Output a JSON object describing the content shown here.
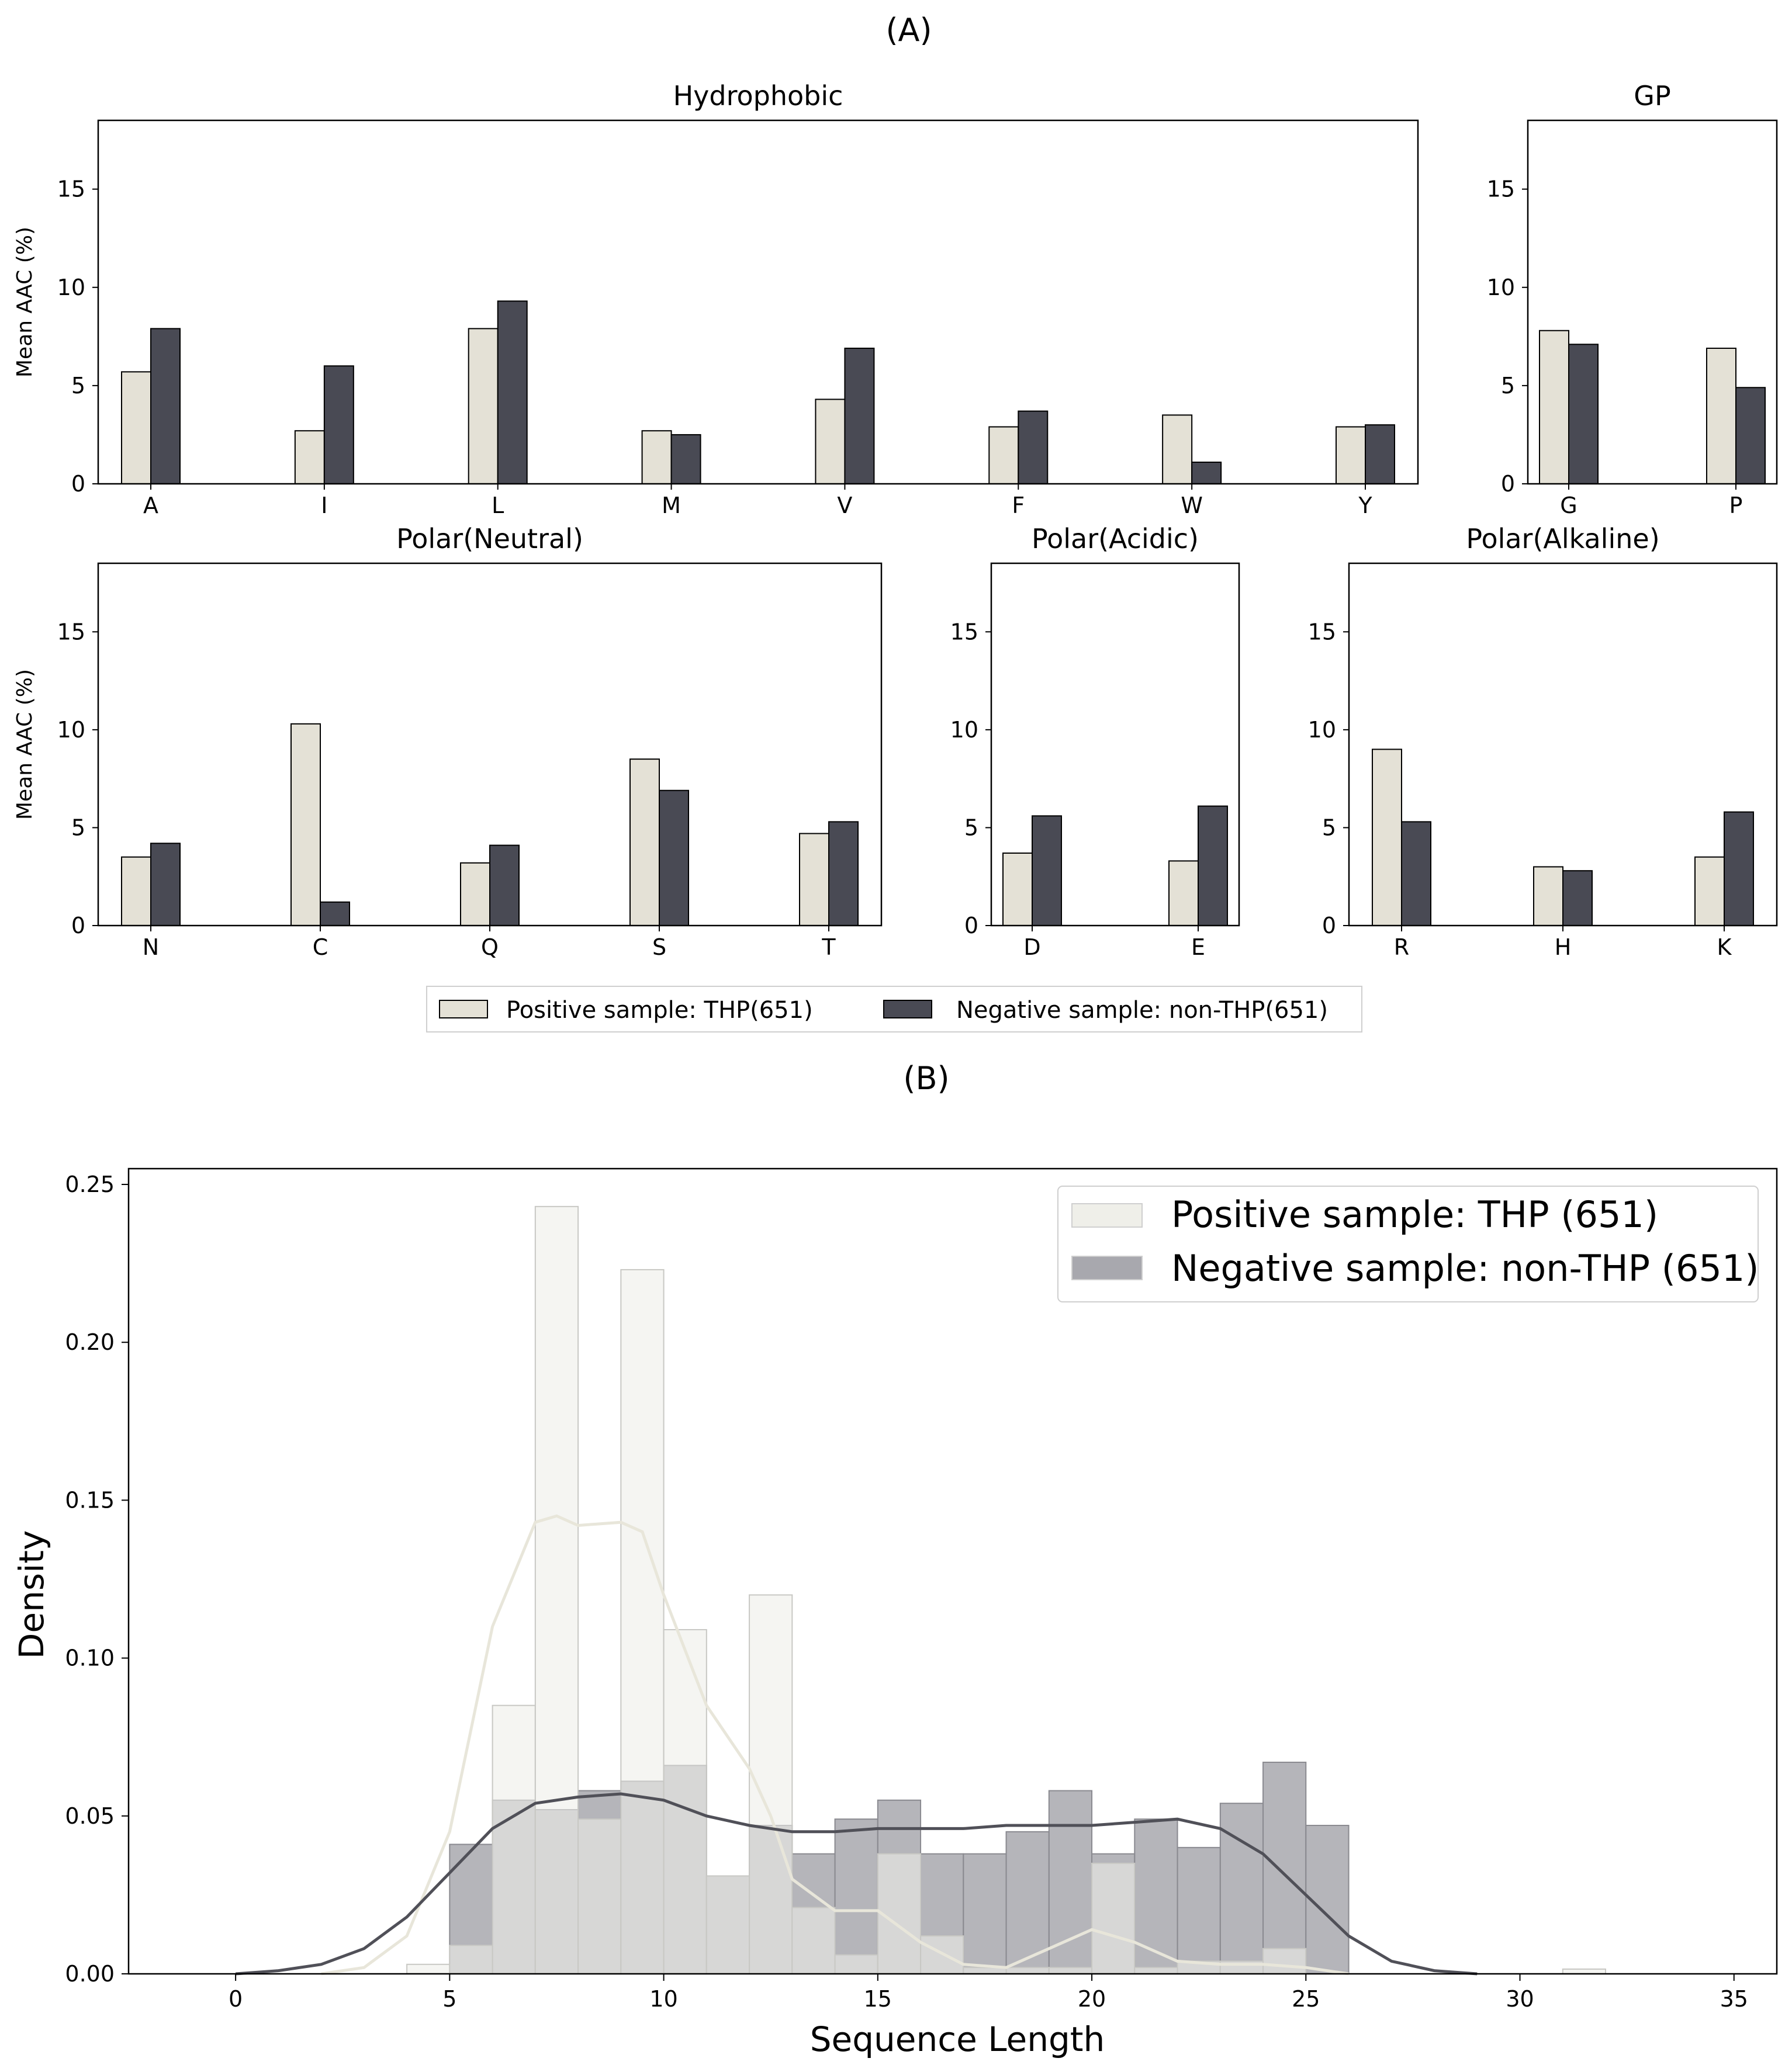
{
  "figure": {
    "label_a": "(A)",
    "label_b": "(B)"
  },
  "colors": {
    "positive": "#e4e1d6",
    "negative": "#494a54",
    "positive_hist": "#efefe9",
    "negative_hist": "#a8a8ae",
    "positive_kde": "#e8e6da",
    "negative_kde": "#505058"
  },
  "chart_data": [
    {
      "type": "bar",
      "title": "Hydrophobic",
      "ylabel": "Mean AAC (%)",
      "ylim": [
        0,
        18.5
      ],
      "yticks": [
        0,
        5,
        10,
        15
      ],
      "categories": [
        "A",
        "I",
        "L",
        "M",
        "V",
        "F",
        "W",
        "Y"
      ],
      "series": [
        {
          "name": "Positive sample: THP(651)",
          "values": [
            5.7,
            2.7,
            7.9,
            2.7,
            4.3,
            2.9,
            3.5,
            2.9
          ]
        },
        {
          "name": "Negative sample: non-THP(651)",
          "values": [
            7.9,
            6.0,
            9.3,
            2.5,
            6.9,
            3.7,
            1.1,
            3.0
          ]
        }
      ]
    },
    {
      "type": "bar",
      "title": "GP",
      "ylabel": "",
      "ylim": [
        0,
        18.5
      ],
      "yticks": [
        0,
        5,
        10,
        15
      ],
      "categories": [
        "G",
        "P"
      ],
      "series": [
        {
          "name": "Positive sample: THP(651)",
          "values": [
            7.8,
            6.9
          ]
        },
        {
          "name": "Negative sample: non-THP(651)",
          "values": [
            7.1,
            4.9
          ]
        }
      ]
    },
    {
      "type": "bar",
      "title": "Polar(Neutral)",
      "ylabel": "Mean AAC (%)",
      "ylim": [
        0,
        18.5
      ],
      "yticks": [
        0,
        5,
        10,
        15
      ],
      "categories": [
        "N",
        "C",
        "Q",
        "S",
        "T"
      ],
      "series": [
        {
          "name": "Positive sample: THP(651)",
          "values": [
            3.5,
            10.3,
            3.2,
            8.5,
            4.7
          ]
        },
        {
          "name": "Negative sample: non-THP(651)",
          "values": [
            4.2,
            1.2,
            4.1,
            6.9,
            5.3
          ]
        }
      ]
    },
    {
      "type": "bar",
      "title": "Polar(Acidic)",
      "ylabel": "",
      "ylim": [
        0,
        18.5
      ],
      "yticks": [
        0,
        5,
        10,
        15
      ],
      "categories": [
        "D",
        "E"
      ],
      "series": [
        {
          "name": "Positive sample: THP(651)",
          "values": [
            3.7,
            3.3
          ]
        },
        {
          "name": "Negative sample: non-THP(651)",
          "values": [
            5.6,
            6.1
          ]
        }
      ]
    },
    {
      "type": "bar",
      "title": "Polar(Alkaline)",
      "ylabel": "",
      "ylim": [
        0,
        18.5
      ],
      "yticks": [
        0,
        5,
        10,
        15
      ],
      "categories": [
        "R",
        "H",
        "K"
      ],
      "series": [
        {
          "name": "Positive sample: THP(651)",
          "values": [
            9.0,
            3.0,
            3.5
          ]
        },
        {
          "name": "Negative sample: non-THP(651)",
          "values": [
            5.3,
            2.8,
            5.8
          ]
        }
      ]
    },
    {
      "type": "histogram",
      "title": "",
      "xlabel": "Sequence Length",
      "ylabel": "Density",
      "xlim": [
        -2.5,
        36
      ],
      "ylim": [
        0,
        0.255
      ],
      "xticks": [
        0,
        5,
        10,
        15,
        20,
        25,
        30,
        35
      ],
      "yticks": [
        "0.00",
        "0.05",
        "0.10",
        "0.15",
        "0.20",
        "0.25"
      ],
      "bin_edges": [
        4,
        5,
        6,
        7,
        8,
        9,
        10,
        11,
        12,
        13,
        14,
        15,
        16,
        17,
        18,
        19,
        20,
        21,
        22,
        23,
        24,
        25,
        31,
        32
      ],
      "series": [
        {
          "name": "Positive sample: THP (651)",
          "bins": [
            [
              4,
              5,
              0.003
            ],
            [
              5,
              6,
              0.009
            ],
            [
              6,
              7,
              0.085
            ],
            [
              7,
              8,
              0.243
            ],
            [
              8,
              9,
              0.049
            ],
            [
              9,
              10,
              0.223
            ],
            [
              10,
              11,
              0.109
            ],
            [
              11,
              12,
              0.031
            ],
            [
              12,
              13,
              0.12
            ],
            [
              13,
              14,
              0.021
            ],
            [
              14,
              15,
              0.006
            ],
            [
              15,
              16,
              0.038
            ],
            [
              16,
              17,
              0.012
            ],
            [
              17,
              18,
              0.002
            ],
            [
              18,
              19,
              0.002
            ],
            [
              19,
              20,
              0.002
            ],
            [
              20,
              21,
              0.035
            ],
            [
              21,
              22,
              0.002
            ],
            [
              22,
              23,
              0.004
            ],
            [
              23,
              24,
              0.004
            ],
            [
              24,
              25,
              0.008
            ],
            [
              31,
              32,
              0.0015
            ]
          ],
          "kde": [
            [
              2,
              0.0
            ],
            [
              3,
              0.002
            ],
            [
              4,
              0.012
            ],
            [
              5,
              0.045
            ],
            [
              6,
              0.11
            ],
            [
              7,
              0.143
            ],
            [
              7.5,
              0.145
            ],
            [
              8,
              0.142
            ],
            [
              9,
              0.143
            ],
            [
              9.5,
              0.14
            ],
            [
              10,
              0.12
            ],
            [
              11,
              0.085
            ],
            [
              12,
              0.065
            ],
            [
              12.5,
              0.05
            ],
            [
              13,
              0.03
            ],
            [
              14,
              0.02
            ],
            [
              15,
              0.02
            ],
            [
              16,
              0.01
            ],
            [
              17,
              0.003
            ],
            [
              18,
              0.002
            ],
            [
              19,
              0.008
            ],
            [
              20,
              0.014
            ],
            [
              21,
              0.01
            ],
            [
              22,
              0.004
            ],
            [
              23,
              0.003
            ],
            [
              24,
              0.003
            ],
            [
              25,
              0.002
            ],
            [
              26,
              0.0
            ]
          ]
        },
        {
          "name": "Negative sample: non-THP (651)",
          "bins": [
            [
              5,
              6,
              0.041
            ],
            [
              6,
              7,
              0.055
            ],
            [
              7,
              8,
              0.052
            ],
            [
              8,
              9,
              0.058
            ],
            [
              9,
              10,
              0.061
            ],
            [
              10,
              11,
              0.066
            ],
            [
              11,
              12,
              0.031
            ],
            [
              12,
              13,
              0.047
            ],
            [
              13,
              14,
              0.038
            ],
            [
              14,
              15,
              0.049
            ],
            [
              15,
              16,
              0.055
            ],
            [
              16,
              17,
              0.038
            ],
            [
              17,
              18,
              0.038
            ],
            [
              18,
              19,
              0.045
            ],
            [
              19,
              20,
              0.058
            ],
            [
              20,
              21,
              0.038
            ],
            [
              21,
              22,
              0.049
            ],
            [
              22,
              23,
              0.04
            ],
            [
              23,
              24,
              0.054
            ],
            [
              24,
              25,
              0.067
            ],
            [
              25,
              26,
              0.047
            ]
          ],
          "kde": [
            [
              0,
              0.0
            ],
            [
              1,
              0.001
            ],
            [
              2,
              0.003
            ],
            [
              3,
              0.008
            ],
            [
              4,
              0.018
            ],
            [
              5,
              0.032
            ],
            [
              6,
              0.046
            ],
            [
              7,
              0.054
            ],
            [
              8,
              0.056
            ],
            [
              9,
              0.057
            ],
            [
              10,
              0.055
            ],
            [
              11,
              0.05
            ],
            [
              12,
              0.047
            ],
            [
              13,
              0.045
            ],
            [
              14,
              0.045
            ],
            [
              15,
              0.046
            ],
            [
              16,
              0.046
            ],
            [
              17,
              0.046
            ],
            [
              18,
              0.047
            ],
            [
              19,
              0.047
            ],
            [
              20,
              0.047
            ],
            [
              21,
              0.048
            ],
            [
              22,
              0.049
            ],
            [
              23,
              0.046
            ],
            [
              24,
              0.038
            ],
            [
              25,
              0.025
            ],
            [
              26,
              0.012
            ],
            [
              27,
              0.004
            ],
            [
              28,
              0.001
            ],
            [
              29,
              0.0
            ]
          ]
        }
      ]
    }
  ],
  "legend_a": {
    "positive": "Positive sample: THP(651)",
    "negative": "Negative sample: non-THP(651)"
  },
  "legend_b": {
    "positive": "Positive sample: THP (651)",
    "negative": "Negative sample: non-THP (651)"
  }
}
